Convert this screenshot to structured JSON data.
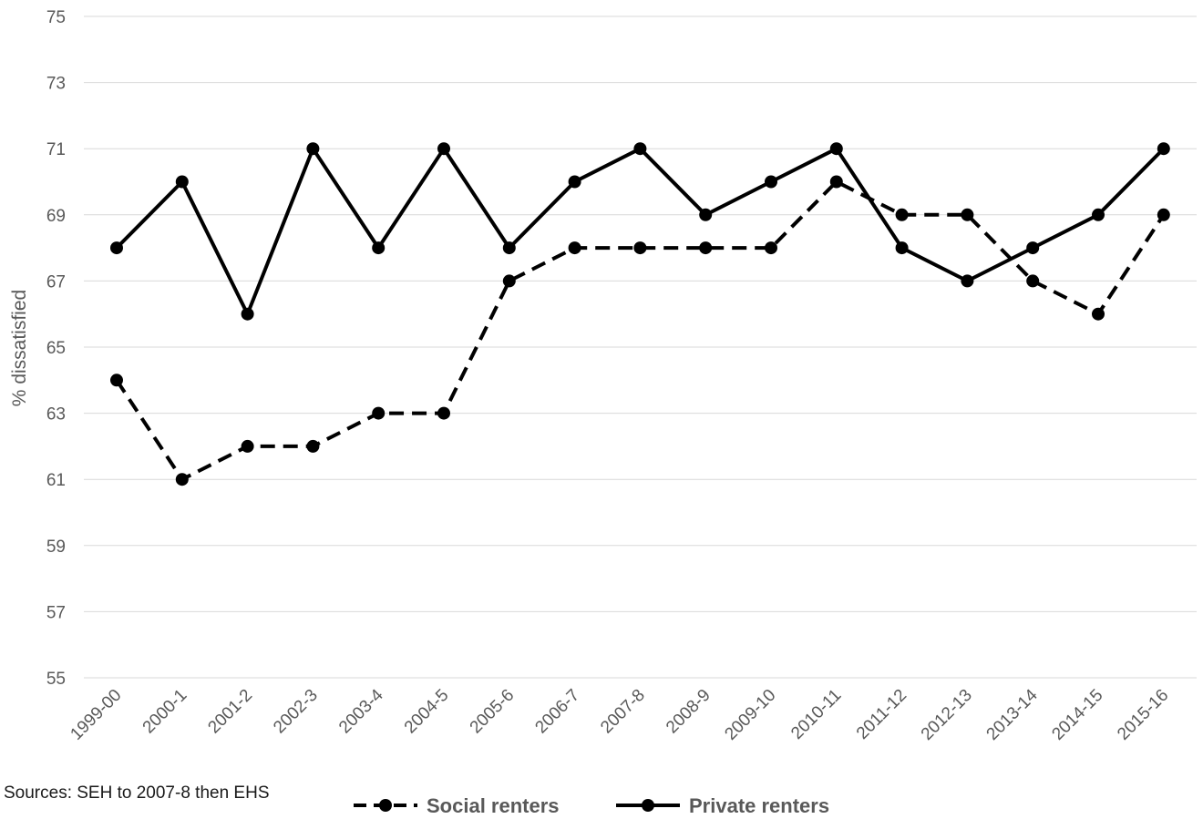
{
  "chart_data": {
    "type": "line",
    "categories": [
      "1999-00",
      "2000-1",
      "2001-2",
      "2002-3",
      "2003-4",
      "2004-5",
      "2005-6",
      "2006-7",
      "2007-8",
      "2008-9",
      "2009-10",
      "2010-11",
      "2011-12",
      "2012-13",
      "2013-14",
      "2014-15",
      "2015-16"
    ],
    "series": [
      {
        "name": "Social renters",
        "style": "dashed",
        "color": "#000000",
        "values": [
          64,
          61,
          62,
          62,
          63,
          63,
          67,
          68,
          68,
          68,
          68,
          70,
          69,
          69,
          67,
          66,
          69
        ]
      },
      {
        "name": "Private renters",
        "style": "solid",
        "color": "#000000",
        "values": [
          68,
          70,
          66,
          71,
          68,
          71,
          68,
          70,
          71,
          69,
          70,
          71,
          68,
          67,
          68,
          69,
          71
        ]
      }
    ],
    "ylabel": "% dissatisfied",
    "xlabel": "",
    "ylim": [
      55,
      75
    ],
    "yticks": [
      55,
      57,
      59,
      61,
      63,
      65,
      67,
      69,
      71,
      73,
      75
    ],
    "grid": true,
    "legend_position": "bottom",
    "colors": {
      "gridline": "#d9d9d9",
      "tick_text": "#595959",
      "line": "#000000"
    }
  },
  "source_note": "Sources: SEH to 2007-8 then EHS"
}
